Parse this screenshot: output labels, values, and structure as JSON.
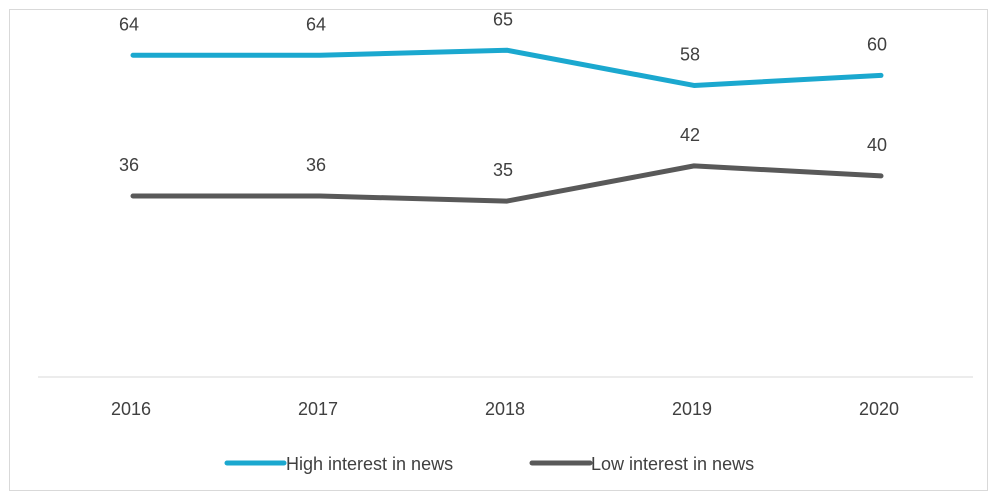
{
  "chart_data": {
    "type": "line",
    "title": "",
    "xlabel": "",
    "ylabel": "",
    "categories": [
      "2016",
      "2017",
      "2018",
      "2019",
      "2020"
    ],
    "ylim": [
      0,
      75
    ],
    "grid": false,
    "legend_position": "bottom",
    "series": [
      {
        "name": "High interest in news",
        "values": [
          64,
          64,
          65,
          58,
          60
        ],
        "color": "#1ba8cf"
      },
      {
        "name": "Low interest in news",
        "values": [
          36,
          36,
          35,
          42,
          40
        ],
        "color": "#595959"
      }
    ]
  }
}
